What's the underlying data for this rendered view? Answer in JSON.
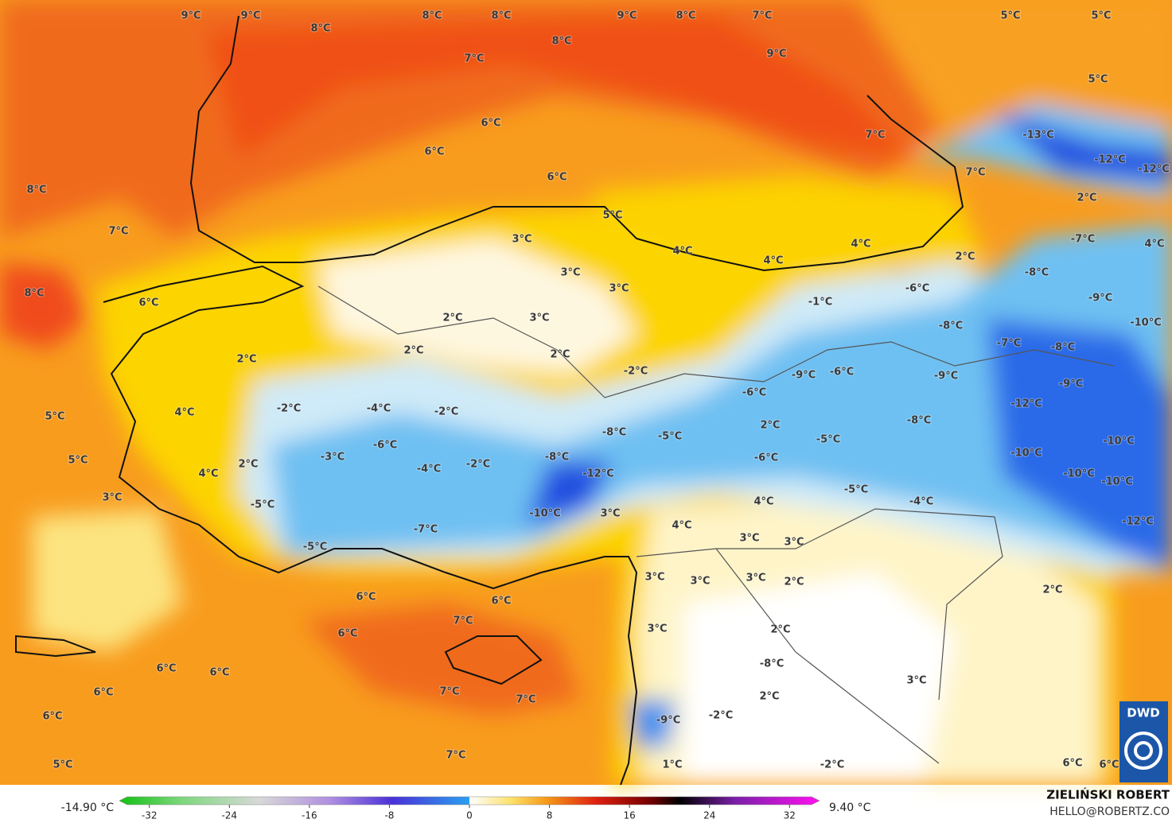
{
  "map": {
    "temperature_labels": [
      "9°C",
      "9°C",
      "8°C",
      "8°C",
      "8°C",
      "9°C",
      "8°C",
      "7°C",
      "5°C",
      "5°C",
      "8°C",
      "7°C",
      "9°C",
      "5°C",
      "6°C",
      "6°C",
      "7°C",
      "-13°C",
      "-12°C",
      "-12°C",
      "6°C",
      "8°C",
      "7°C",
      "2°C",
      "5°C",
      "7°C",
      "3°C",
      "-7°C",
      "4°C",
      "4°C",
      "4°C",
      "4°C",
      "2°C",
      "3°C",
      "-8°C",
      "3°C",
      "-6°C",
      "8°C",
      "6°C",
      "-1°C",
      "-9°C",
      "2°C",
      "3°C",
      "-8°C",
      "-10°C",
      "2°C",
      "2°C",
      "2°C",
      "-7°C",
      "-8°C",
      "-2°C",
      "-9°C",
      "-6°C",
      "-9°C",
      "-9°C",
      "-6°C",
      "-2°C",
      "-4°C",
      "-2°C",
      "4°C",
      "5°C",
      "-12°C",
      "2°C",
      "-8°C",
      "-5°C",
      "-5°C",
      "-8°C",
      "-10°C",
      "-6°C",
      "-3°C",
      "-2°C",
      "-8°C",
      "-6°C",
      "2°C",
      "5°C",
      "-10°C",
      "-4°C",
      "4°C",
      "-12°C",
      "-10°C",
      "-10°C",
      "3°C",
      "-5°C",
      "-5°C",
      "4°C",
      "-4°C",
      "-10°C",
      "3°C",
      "4°C",
      "-12°C",
      "-7°C",
      "3°C",
      "3°C",
      "-5°C",
      "3°C",
      "3°C",
      "3°C",
      "2°C",
      "2°C",
      "6°C",
      "6°C",
      "7°C",
      "3°C",
      "2°C",
      "6°C",
      "-8°C",
      "6°C",
      "6°C",
      "3°C",
      "6°C",
      "7°C",
      "7°C",
      "2°C",
      "6°C",
      "-9°C",
      "-2°C",
      "7°C",
      "5°C",
      "1°C",
      "-2°C",
      "6°C",
      "6°C"
    ],
    "colorbar": {
      "min_label": "-14.90 °C",
      "max_label": "9.40 °C",
      "lim": [
        -35,
        35
      ],
      "ticks": [
        -32,
        -24,
        -16,
        -8,
        0,
        8,
        16,
        24,
        32
      ]
    },
    "author": "ZIELIŃSKI ROBERT",
    "contact": "HELLO@ROBERTZ.CO",
    "logo": "DWD"
  }
}
